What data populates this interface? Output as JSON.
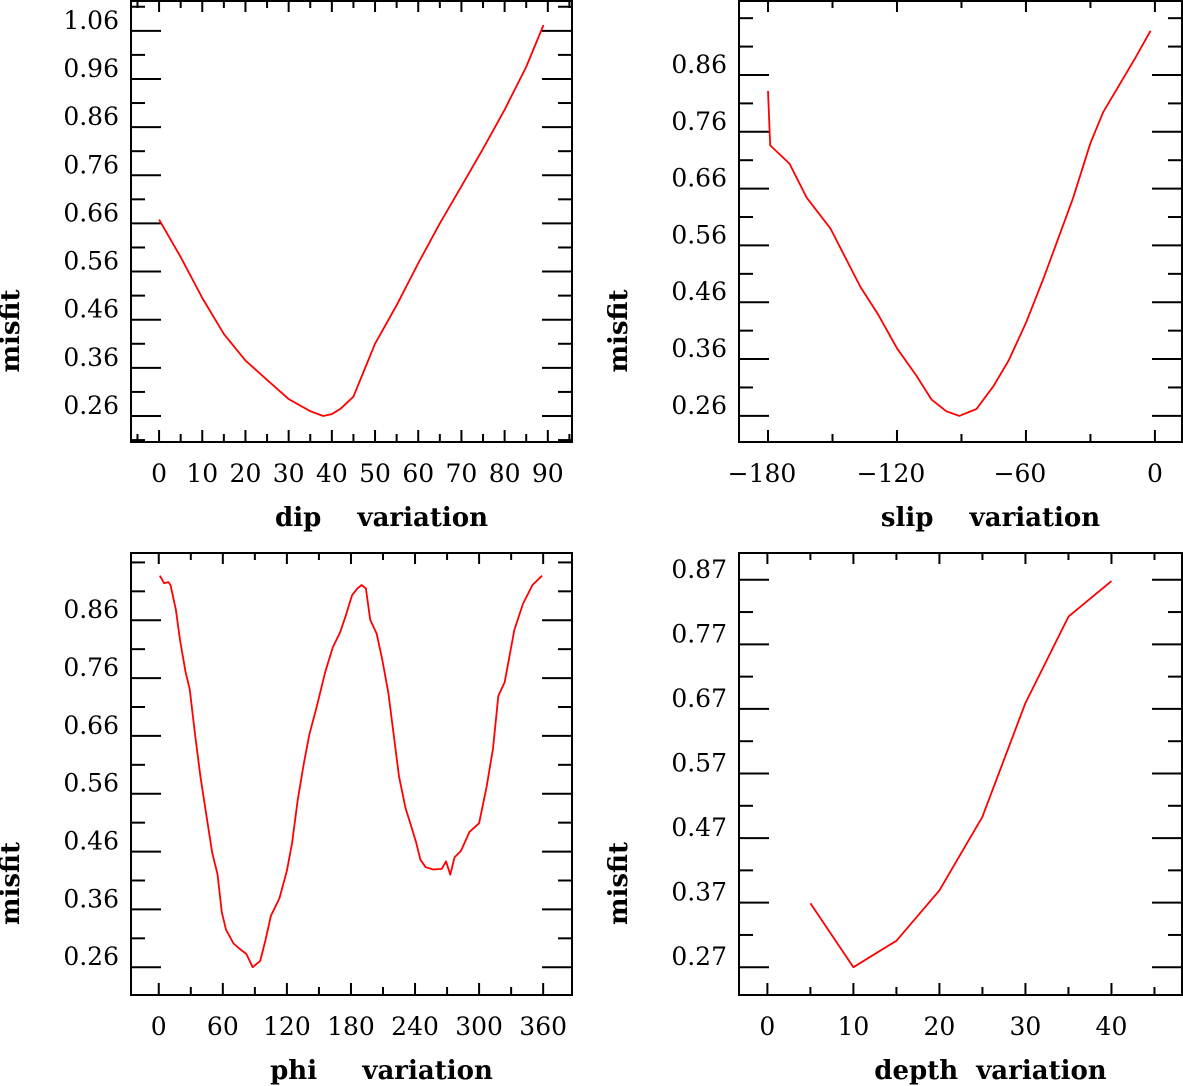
{
  "chart_data": [
    {
      "type": "line",
      "title": "",
      "xlabel": "dip    variation",
      "ylabel": "misfit",
      "xlim": [
        -6.5,
        95.6
      ],
      "ylim": [
        0.206,
        1.124
      ],
      "x_ticks": [
        0,
        10,
        20,
        30,
        40,
        50,
        60,
        70,
        80,
        90
      ],
      "x_tick_labels": [
        "0",
        "10",
        "20",
        "30",
        "40",
        "50",
        "60",
        "70",
        "80",
        "90"
      ],
      "x_minor_step": 5,
      "y_ticks": [
        0.26,
        0.36,
        0.46,
        0.56,
        0.66,
        0.76,
        0.86,
        0.96,
        1.06
      ],
      "y_tick_labels": [
        "0.26",
        "0.36",
        "0.46",
        "0.56",
        "0.66",
        "0.76",
        "0.86",
        "0.96",
        "1.06"
      ],
      "y_minor_step": 0.05,
      "color": "#ff0000",
      "x": [
        0,
        5,
        10,
        15,
        20,
        25,
        30,
        35,
        38,
        40,
        42,
        45,
        50,
        55,
        60,
        65,
        70,
        75,
        80,
        85,
        89
      ],
      "y": [
        0.668,
        0.59,
        0.505,
        0.43,
        0.375,
        0.335,
        0.295,
        0.27,
        0.26,
        0.264,
        0.275,
        0.3,
        0.41,
        0.49,
        0.577,
        0.66,
        0.737,
        0.815,
        0.896,
        0.985,
        1.072
      ]
    },
    {
      "type": "line",
      "title": "",
      "xlabel": "slip    variation",
      "ylabel": "misfit",
      "xlim": [
        -193.5,
        12.6
      ],
      "ylim": [
        0.214,
        0.992
      ],
      "x_ticks": [
        -180,
        -120,
        -60,
        0
      ],
      "x_tick_labels": [
        "−180",
        "−120",
        "−60",
        "0"
      ],
      "x_minor_step": 30,
      "y_ticks": [
        0.26,
        0.36,
        0.46,
        0.56,
        0.66,
        0.76,
        0.86
      ],
      "y_tick_labels": [
        "0.26",
        "0.36",
        "0.46",
        "0.56",
        "0.66",
        "0.76",
        "0.86"
      ],
      "y_minor_step": 0.05,
      "color": "#ff0000",
      "x": [
        -180,
        -179,
        -170,
        -162,
        -151,
        -137,
        -129,
        -120,
        -111,
        -104,
        -97,
        -91,
        -83,
        -75,
        -68,
        -60,
        -52,
        -45,
        -38,
        -30,
        -24,
        -16,
        -9,
        -2
      ],
      "y": [
        0.832,
        0.736,
        0.704,
        0.644,
        0.59,
        0.487,
        0.44,
        0.379,
        0.331,
        0.289,
        0.268,
        0.26,
        0.272,
        0.313,
        0.358,
        0.424,
        0.5,
        0.572,
        0.644,
        0.74,
        0.795,
        0.846,
        0.891,
        0.938
      ]
    },
    {
      "type": "line",
      "title": "",
      "xlabel": "phi     variation",
      "ylabel": "misfit",
      "xlim": [
        -26,
        387
      ],
      "ylim": [
        0.212,
        0.978
      ],
      "x_ticks": [
        0,
        60,
        120,
        180,
        240,
        300,
        360
      ],
      "x_tick_labels": [
        "0",
        "60",
        "120",
        "180",
        "240",
        "300",
        "360"
      ],
      "x_minor_step": 30,
      "y_ticks": [
        0.26,
        0.36,
        0.46,
        0.56,
        0.66,
        0.76,
        0.86
      ],
      "y_tick_labels": [
        "0.26",
        "0.36",
        "0.46",
        "0.56",
        "0.66",
        "0.76",
        "0.86"
      ],
      "y_minor_step": 0.05,
      "color": "#ff0000",
      "x": [
        1,
        5,
        9,
        11,
        16,
        20,
        25,
        29,
        34,
        39,
        45,
        50,
        55,
        59,
        63,
        70,
        77,
        82,
        88,
        95,
        100,
        105,
        113,
        120,
        125,
        130,
        136,
        141,
        148,
        156,
        163,
        170,
        175,
        181,
        186,
        190,
        194,
        198,
        204,
        209,
        215,
        220,
        225,
        231,
        236,
        241,
        245,
        250,
        257,
        265,
        269,
        273,
        277,
        283,
        291,
        300,
        307,
        313,
        318,
        324,
        333,
        341,
        350,
        359
      ],
      "y": [
        0.937,
        0.924,
        0.926,
        0.921,
        0.879,
        0.825,
        0.771,
        0.741,
        0.662,
        0.59,
        0.518,
        0.458,
        0.421,
        0.355,
        0.325,
        0.301,
        0.29,
        0.283,
        0.26,
        0.271,
        0.307,
        0.349,
        0.379,
        0.427,
        0.476,
        0.548,
        0.614,
        0.662,
        0.711,
        0.771,
        0.813,
        0.84,
        0.867,
        0.903,
        0.915,
        0.921,
        0.915,
        0.861,
        0.837,
        0.795,
        0.735,
        0.662,
        0.59,
        0.536,
        0.506,
        0.476,
        0.446,
        0.433,
        0.429,
        0.43,
        0.443,
        0.42,
        0.45,
        0.461,
        0.494,
        0.509,
        0.572,
        0.638,
        0.729,
        0.753,
        0.843,
        0.888,
        0.921,
        0.937
      ]
    },
    {
      "type": "line",
      "title": "",
      "xlabel": "depth  variation",
      "ylabel": "misfit",
      "xlim": [
        -3.3,
        48.2
      ],
      "ylim": [
        0.227,
        0.913
      ],
      "x_ticks": [
        0,
        10,
        20,
        30,
        40
      ],
      "x_tick_labels": [
        "0",
        "10",
        "20",
        "30",
        "40"
      ],
      "x_minor_step": 5,
      "y_ticks": [
        0.27,
        0.37,
        0.47,
        0.57,
        0.67,
        0.77,
        0.87
      ],
      "y_tick_labels": [
        "0.27",
        "0.37",
        "0.47",
        "0.57",
        "0.67",
        "0.77",
        "0.87"
      ],
      "y_minor_step": 0.05,
      "color": "#ff0000",
      "x": [
        5,
        10,
        15,
        20,
        25,
        30,
        35,
        40
      ],
      "y": [
        0.369,
        0.27,
        0.311,
        0.389,
        0.503,
        0.679,
        0.813,
        0.868
      ]
    }
  ]
}
